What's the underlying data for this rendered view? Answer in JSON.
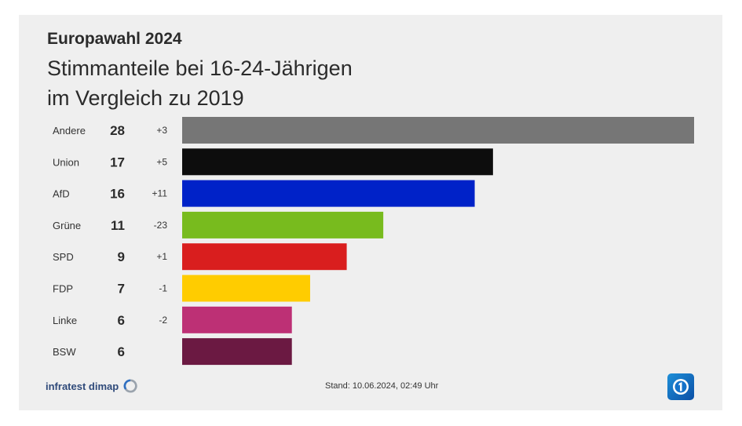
{
  "header": {
    "title": "Europawahl 2024",
    "subtitle_line1": "Stimmanteile bei 16-24-Jährigen",
    "subtitle_line2": "im Vergleich zu 2019"
  },
  "footer": {
    "source": "infratest dimap",
    "stand": "Stand:  10.06.2024, 02:49 Uhr",
    "logo_icon": "tagesschau-logo-icon"
  },
  "chart_data": {
    "type": "bar",
    "orientation": "horizontal",
    "title": "Stimmanteile bei 16-24-Jährigen im Vergleich zu 2019",
    "categories": [
      "Andere",
      "Union",
      "AfD",
      "Grüne",
      "SPD",
      "FDP",
      "Linke",
      "BSW"
    ],
    "values": [
      28,
      17,
      16,
      11,
      9,
      7,
      6,
      6
    ],
    "value_labels": [
      "28",
      "17",
      "16",
      "11",
      "9",
      "7",
      "6",
      "6"
    ],
    "changes": [
      "+3",
      "+5",
      "+11",
      "-23",
      "+1",
      "-1",
      "-2",
      ""
    ],
    "colors": [
      "#767676",
      "#0d0d0d",
      "#0022c8",
      "#78bb1e",
      "#d91e1e",
      "#ffcc00",
      "#bd3075",
      "#6b1942"
    ],
    "xlim": [
      0,
      28
    ],
    "grid": false,
    "legend": "none"
  }
}
